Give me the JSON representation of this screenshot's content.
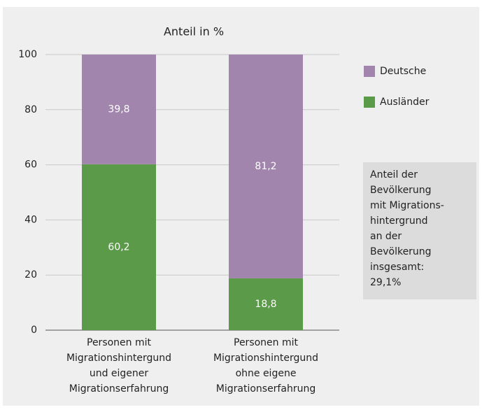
{
  "chart_data": {
    "type": "stacked_bar",
    "title": "Anteil in %",
    "categories": [
      [
        "Personen mit",
        "Migrationshintergund",
        "und eigener",
        "Migrationserfahrung"
      ],
      [
        "Personen mit",
        "Migrationshintergund",
        "ohne eigene",
        "Migrationserfahrung"
      ]
    ],
    "series": [
      {
        "name": "Ausländer",
        "color": "#5b9a48",
        "values": [
          60.2,
          18.8
        ],
        "value_labels": [
          "60,2",
          "18,8"
        ]
      },
      {
        "name": "Deutsche",
        "color": "#a185ad",
        "values": [
          39.8,
          81.2
        ],
        "value_labels": [
          "39,8",
          "81,2"
        ]
      }
    ],
    "ylim": [
      0,
      100
    ],
    "yticks": [
      0,
      20,
      40,
      60,
      80,
      100
    ],
    "grid": true,
    "legend": "right",
    "annotation": [
      "Anteil der",
      "Bevölkerung",
      "mit Migrations-",
      "hintergrund",
      "an der",
      "Bevölkerung",
      "insgesamt:",
      "29,1%"
    ]
  }
}
